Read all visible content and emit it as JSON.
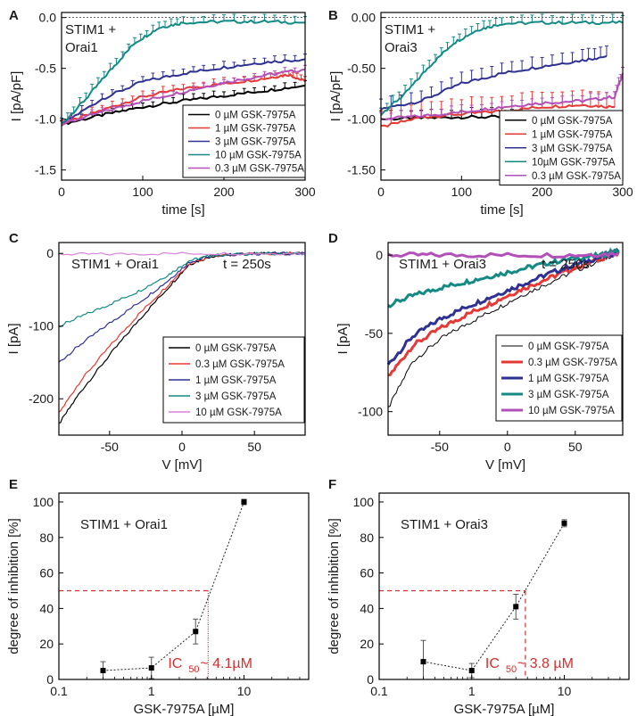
{
  "figure": {
    "panels": [
      "A",
      "B",
      "C",
      "D",
      "E",
      "F"
    ]
  },
  "chart_data": [
    {
      "id": "A",
      "type": "line",
      "title": "STIM1 +\nOrai1",
      "xlabel": "time [s]",
      "ylabel": "I [pA/pF]",
      "xlim": [
        0,
        300
      ],
      "ylim": [
        -1.6,
        0.05
      ],
      "xticks": [
        0,
        100,
        200,
        300
      ],
      "yticks": [
        0,
        -0.5,
        -1,
        -1.5
      ],
      "ytick_labels": [
        "0.0",
        "-0.5",
        "-1.0",
        "-1.5"
      ],
      "error_bars": "upper",
      "legend_position": "bottom-right",
      "series": [
        {
          "name": "0 µM GSK-7975A",
          "color": "#000000",
          "x": [
            0,
            50,
            100,
            150,
            200,
            250,
            300
          ],
          "values": [
            -1.05,
            -0.96,
            -0.88,
            -0.82,
            -0.77,
            -0.72,
            -0.67
          ],
          "err": 0.05
        },
        {
          "name": "1 µM GSK-7975A",
          "color": "#e53935",
          "x": [
            0,
            50,
            100,
            150,
            200,
            250,
            280,
            300
          ],
          "values": [
            -1.05,
            -0.91,
            -0.78,
            -0.7,
            -0.65,
            -0.6,
            -0.56,
            -0.63
          ],
          "err": 0.05
        },
        {
          "name": "3 µM GSK-7975A",
          "color": "#2e3192",
          "x": [
            0,
            50,
            100,
            150,
            200,
            250,
            300
          ],
          "values": [
            -1.05,
            -0.8,
            -0.63,
            -0.55,
            -0.49,
            -0.44,
            -0.41
          ],
          "err": 0.05
        },
        {
          "name": "10 µM GSK-7975A",
          "color": "#138a84",
          "x": [
            0,
            30,
            60,
            90,
            120,
            150,
            200,
            250,
            300
          ],
          "values": [
            -1.05,
            -0.8,
            -0.52,
            -0.25,
            -0.1,
            -0.05,
            -0.04,
            -0.04,
            -0.05
          ],
          "err": 0.06
        },
        {
          "name": "0.3 µM GSK-7975A",
          "color": "#b24fb8",
          "x": [
            0,
            50,
            100,
            150,
            200,
            250,
            300
          ],
          "values": [
            -1.05,
            -0.93,
            -0.82,
            -0.73,
            -0.64,
            -0.57,
            -0.51
          ],
          "err": 0.04
        }
      ]
    },
    {
      "id": "B",
      "type": "line",
      "title": "STIM1 +\nOrai3",
      "xlabel": "time [s]",
      "ylabel": "I [pA/pF]",
      "xlim": [
        0,
        300
      ],
      "ylim": [
        -1.6,
        0.05
      ],
      "xticks": [
        0,
        100,
        200,
        300
      ],
      "yticks": [
        0,
        -0.5,
        -1,
        -1.5
      ],
      "ytick_labels": [
        "0.00",
        "-0.50",
        "-1.00",
        "-1.50"
      ],
      "error_bars": "upper",
      "legend_position": "bottom-right",
      "series": [
        {
          "name": "0 µM GSK-7975A",
          "color": "#000000",
          "x": [
            0,
            50,
            100,
            150,
            200,
            250,
            290
          ],
          "values": [
            -1.0,
            -0.99,
            -0.98,
            -0.98,
            -0.99,
            -1.0,
            -1.0
          ],
          "err": 0.08
        },
        {
          "name": "1 µM GSK-7975A",
          "color": "#e53935",
          "x": [
            0,
            50,
            100,
            150,
            200,
            250,
            290
          ],
          "values": [
            -1.08,
            -0.98,
            -0.95,
            -0.92,
            -0.88,
            -0.86,
            -0.88
          ],
          "err": 0.15
        },
        {
          "name": "3 µM GSK-7975A",
          "color": "#2e3192",
          "x": [
            0,
            50,
            100,
            150,
            200,
            250,
            280
          ],
          "values": [
            -0.9,
            -0.82,
            -0.65,
            -0.55,
            -0.48,
            -0.42,
            -0.38
          ],
          "err": 0.1
        },
        {
          "name": "10µM GSK-7975A",
          "color": "#138a84",
          "x": [
            0,
            30,
            60,
            90,
            120,
            150,
            200,
            250,
            300
          ],
          "values": [
            -0.95,
            -0.75,
            -0.48,
            -0.25,
            -0.12,
            -0.06,
            -0.05,
            -0.05,
            -0.05
          ],
          "err": 0.07
        },
        {
          "name": "0.3 µM GSK-7975A",
          "color": "#b24fb8",
          "x": [
            0,
            50,
            100,
            150,
            200,
            250,
            290,
            300
          ],
          "values": [
            -1.0,
            -0.97,
            -0.93,
            -0.88,
            -0.84,
            -0.82,
            -0.78,
            -0.55
          ],
          "err": 0.06
        }
      ]
    },
    {
      "id": "C",
      "type": "line",
      "title": "STIM1 + Orai1",
      "annotation": "t = 250s",
      "xlabel": "V [mV]",
      "ylabel": "I [pA]",
      "xlim": [
        -85,
        85
      ],
      "ylim": [
        -250,
        15
      ],
      "xticks": [
        -50,
        0,
        50
      ],
      "yticks": [
        0,
        -100,
        -200
      ],
      "legend_position": "bottom-right",
      "series": [
        {
          "name": "0 µM GSK-7975A",
          "color": "#000000",
          "x": [
            -85,
            -70,
            -50,
            -30,
            -10,
            5,
            20,
            40,
            60,
            85
          ],
          "values": [
            -235,
            -190,
            -140,
            -92,
            -48,
            -15,
            -4,
            -1,
            0,
            0
          ]
        },
        {
          "name": "0.3 µM GSK-7975A",
          "color": "#e53935",
          "x": [
            -85,
            -70,
            -50,
            -30,
            -10,
            5,
            20,
            40,
            60,
            85
          ],
          "values": [
            -220,
            -175,
            -128,
            -84,
            -44,
            -14,
            -4,
            -1,
            0,
            0
          ]
        },
        {
          "name": "1 µM GSK-7975A",
          "color": "#2e3192",
          "x": [
            -85,
            -70,
            -50,
            -30,
            -10,
            5,
            20,
            40,
            60,
            85
          ],
          "values": [
            -150,
            -125,
            -96,
            -68,
            -38,
            -12,
            -3,
            -1,
            0,
            0
          ]
        },
        {
          "name": "3 µM GSK-7975A",
          "color": "#138a84",
          "x": [
            -85,
            -70,
            -50,
            -30,
            -10,
            5,
            20,
            40,
            60,
            85
          ],
          "values": [
            -100,
            -87,
            -70,
            -52,
            -30,
            -10,
            -3,
            -1,
            0,
            0
          ]
        },
        {
          "name": "10 µM GSK-7975A",
          "color": "#d982d9",
          "x": [
            -85,
            -50,
            0,
            50,
            85
          ],
          "values": [
            -1,
            -1,
            0,
            0,
            0
          ]
        }
      ]
    },
    {
      "id": "D",
      "type": "line",
      "title": "STIM1 + Orai3",
      "annotation": "t = 250s",
      "xlabel": "V [mV]",
      "ylabel": "I [pA]",
      "xlim": [
        -88,
        85
      ],
      "ylim": [
        -115,
        8
      ],
      "xticks": [
        -50,
        0,
        50
      ],
      "yticks": [
        0,
        -50,
        -100
      ],
      "legend_position": "bottom-right",
      "series": [
        {
          "name": "0 µM GSK-7975A",
          "color": "#000000",
          "width": 1,
          "x": [
            -88,
            -70,
            -50,
            -30,
            -10,
            10,
            30,
            50,
            70,
            82
          ],
          "values": [
            -98,
            -68,
            -54,
            -44,
            -35,
            -26,
            -18,
            -10,
            -3,
            2
          ]
        },
        {
          "name": "0.3 µM GSK-7975A",
          "color": "#e53935",
          "width": 3,
          "x": [
            -88,
            -70,
            -50,
            -30,
            -10,
            10,
            30,
            50,
            70,
            82
          ],
          "values": [
            -78,
            -58,
            -47,
            -38,
            -30,
            -22,
            -15,
            -8,
            -2,
            2
          ]
        },
        {
          "name": "1 µM GSK-7975A",
          "color": "#2e3192",
          "width": 3,
          "x": [
            -88,
            -70,
            -50,
            -30,
            -10,
            10,
            30,
            50,
            70,
            82
          ],
          "values": [
            -70,
            -52,
            -41,
            -33,
            -26,
            -19,
            -12,
            -6,
            -1,
            2
          ]
        },
        {
          "name": "3 µM GSK-7975A",
          "color": "#138a84",
          "width": 3,
          "x": [
            -88,
            -70,
            -50,
            -30,
            -10,
            10,
            30,
            50,
            70,
            82
          ],
          "values": [
            -32,
            -26,
            -21,
            -17,
            -13,
            -9,
            -5,
            -2,
            0,
            3
          ]
        },
        {
          "name": "10 µM GSK-7975A",
          "color": "#b24fb8",
          "width": 3,
          "x": [
            -88,
            -50,
            0,
            50,
            82
          ],
          "values": [
            0,
            0,
            0,
            0,
            1
          ]
        }
      ]
    },
    {
      "id": "E",
      "type": "scatter",
      "title": "STIM1 + Orai1",
      "xlabel": "GSK-7975A [µM]",
      "ylabel": "degree of inhibition [%]",
      "xscale": "log",
      "xlim": [
        0.1,
        50
      ],
      "ylim": [
        0,
        105
      ],
      "xticks": [
        0.1,
        1,
        10
      ],
      "xtick_labels": [
        "0.1",
        "1",
        "10"
      ],
      "yticks": [
        0,
        20,
        40,
        60,
        80,
        100
      ],
      "x": [
        0.3,
        1,
        3,
        10
      ],
      "values": [
        5,
        6.5,
        27,
        100
      ],
      "err": [
        5,
        6,
        7,
        1.5
      ],
      "ic50_value": 4.1,
      "ic50_level": 50,
      "ic50_label": "IC",
      "ic50_sub": "50",
      "ic50_text": " ~ 4.1µM"
    },
    {
      "id": "F",
      "type": "scatter",
      "title": "STIM1 + Orai3",
      "xlabel": "GSK-7975A [µM]",
      "ylabel": "degree of inhibition [%]",
      "xscale": "log",
      "xlim": [
        0.1,
        50
      ],
      "ylim": [
        0,
        105
      ],
      "xticks": [
        0.1,
        1,
        10
      ],
      "xtick_labels": [
        "0.1",
        "1",
        "10"
      ],
      "yticks": [
        0,
        20,
        40,
        60,
        80,
        100
      ],
      "x": [
        0.3,
        1,
        3,
        10
      ],
      "values": [
        10,
        5,
        41,
        88
      ],
      "err": [
        12,
        4,
        7,
        2
      ],
      "ic50_value": 3.8,
      "ic50_level": 50,
      "ic50_label": "IC",
      "ic50_sub": "50",
      "ic50_text": " ~ 3.8 µM"
    }
  ]
}
